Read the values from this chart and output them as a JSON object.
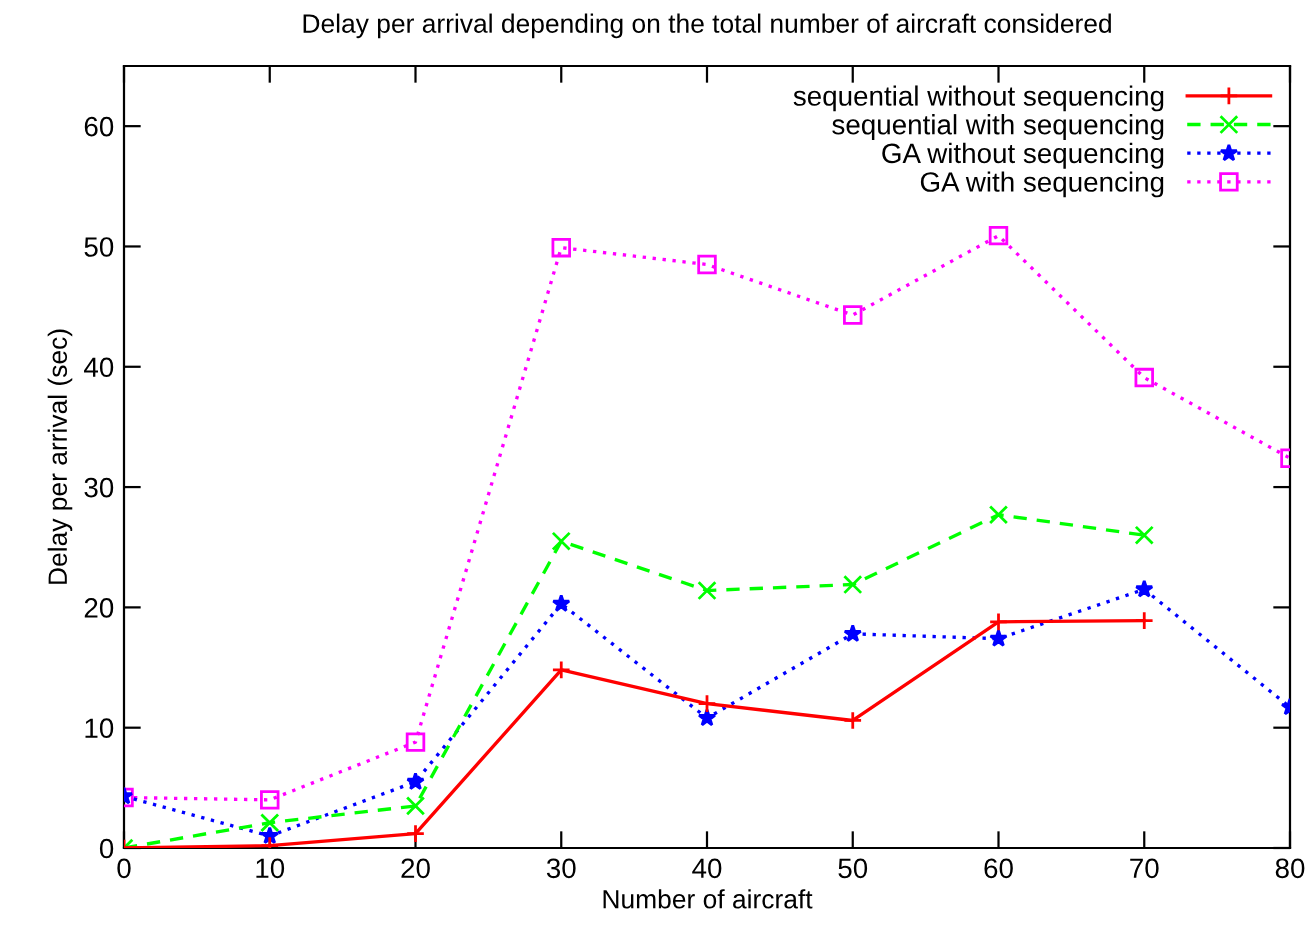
{
  "chart_data": {
    "type": "line",
    "title": "Delay per arrival depending on the total number of aircraft considered",
    "xlabel": "Number of aircraft",
    "ylabel": "Delay per arrival (sec)",
    "x": [
      0,
      10,
      20,
      30,
      40,
      50,
      60,
      70,
      80
    ],
    "series": [
      {
        "name": "sequential without sequencing",
        "color": "#ff0000",
        "marker": "plus",
        "line_style": "solid",
        "values": [
          0,
          0.2,
          1.2,
          14.8,
          12.0,
          10.6,
          18.8,
          18.9,
          null
        ]
      },
      {
        "name": "sequential with sequencing",
        "color": "#00ff00",
        "marker": "cross",
        "line_style": "dashed",
        "values": [
          0,
          2.1,
          3.5,
          25.5,
          21.4,
          21.9,
          27.7,
          26.0,
          null
        ]
      },
      {
        "name": "GA without sequencing",
        "color": "#0000ff",
        "marker": "star",
        "line_style": "dotted",
        "values": [
          4.3,
          1.0,
          5.5,
          20.3,
          10.8,
          17.8,
          17.4,
          21.5,
          11.7
        ]
      },
      {
        "name": "GA with sequencing",
        "color": "#ff00ff",
        "marker": "square",
        "line_style": "dotted",
        "values": [
          4.2,
          4.0,
          8.8,
          49.9,
          48.5,
          44.3,
          50.9,
          39.1,
          32.4
        ]
      }
    ],
    "xlim": [
      0,
      80
    ],
    "ylim": [
      0,
      65
    ],
    "xticks": [
      0,
      10,
      20,
      30,
      40,
      50,
      60,
      70,
      80
    ],
    "yticks": [
      0,
      10,
      20,
      30,
      40,
      50,
      60
    ],
    "grid": false,
    "legend": "top right"
  }
}
